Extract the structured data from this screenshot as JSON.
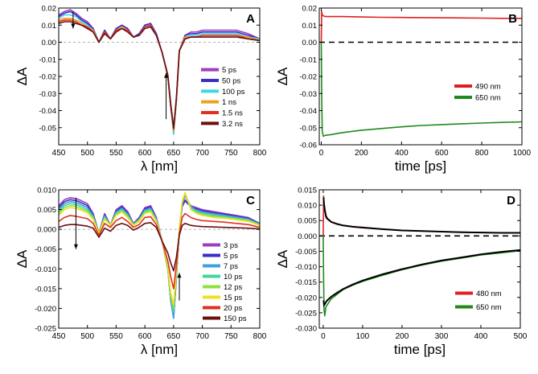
{
  "chart_data": [
    {
      "panel": "A",
      "type": "line",
      "xlabel": "λ [nm]",
      "ylabel": "ΔA",
      "xlim": [
        450,
        800
      ],
      "ylim": [
        -0.06,
        0.02
      ],
      "xticks": [
        450,
        500,
        550,
        600,
        650,
        700,
        750,
        800
      ],
      "yticks": [
        0.02,
        0.01,
        0.0,
        -0.01,
        -0.02,
        -0.03,
        -0.04,
        -0.05
      ],
      "legend_position": "bottom-right",
      "zero_line": true,
      "arrows": [
        {
          "x": 475,
          "from": 0.018,
          "to": 0.008
        },
        {
          "x": 637,
          "from": -0.045,
          "to": -0.018
        }
      ],
      "x": [
        450,
        460,
        470,
        480,
        490,
        500,
        510,
        520,
        530,
        540,
        550,
        560,
        570,
        580,
        590,
        600,
        610,
        620,
        630,
        640,
        645,
        650,
        655,
        660,
        670,
        680,
        690,
        700,
        720,
        740,
        760,
        780,
        800
      ],
      "series": [
        {
          "name": "5 ps",
          "color": "#9b3fc0",
          "values": [
            0.016,
            0.018,
            0.019,
            0.017,
            0.014,
            0.012,
            0.008,
            0.0,
            0.007,
            0.002,
            0.008,
            0.01,
            0.008,
            0.003,
            0.005,
            0.01,
            0.011,
            0.005,
            -0.006,
            -0.02,
            -0.038,
            -0.052,
            -0.034,
            -0.005,
            0.004,
            0.006,
            0.006,
            0.007,
            0.007,
            0.007,
            0.007,
            0.005,
            0.002
          ]
        },
        {
          "name": "50 ps",
          "color": "#3a2ec8",
          "values": [
            0.015,
            0.017,
            0.018,
            0.016,
            0.013,
            0.011,
            0.008,
            0.0,
            0.007,
            0.002,
            0.008,
            0.01,
            0.008,
            0.003,
            0.005,
            0.01,
            0.011,
            0.005,
            -0.006,
            -0.02,
            -0.038,
            -0.053,
            -0.034,
            -0.005,
            0.004,
            0.005,
            0.005,
            0.006,
            0.006,
            0.006,
            0.006,
            0.004,
            0.002
          ]
        },
        {
          "name": "100 ps",
          "color": "#3fd6e0",
          "values": [
            0.014,
            0.016,
            0.016,
            0.015,
            0.012,
            0.01,
            0.007,
            0.0,
            0.006,
            0.002,
            0.007,
            0.009,
            0.007,
            0.003,
            0.004,
            0.009,
            0.01,
            0.004,
            -0.006,
            -0.02,
            -0.038,
            -0.054,
            -0.034,
            -0.005,
            0.003,
            0.004,
            0.004,
            0.005,
            0.005,
            0.005,
            0.005,
            0.003,
            0.002
          ]
        },
        {
          "name": "1 ns",
          "color": "#f0a020",
          "values": [
            0.013,
            0.014,
            0.014,
            0.013,
            0.011,
            0.009,
            0.007,
            0.0,
            0.006,
            0.002,
            0.007,
            0.009,
            0.007,
            0.003,
            0.004,
            0.009,
            0.01,
            0.004,
            -0.006,
            -0.02,
            -0.037,
            -0.052,
            -0.033,
            -0.005,
            0.003,
            0.003,
            0.003,
            0.004,
            0.004,
            0.004,
            0.004,
            0.003,
            0.001
          ]
        },
        {
          "name": "1.5 ns",
          "color": "#e03020",
          "values": [
            0.012,
            0.013,
            0.013,
            0.012,
            0.01,
            0.009,
            0.006,
            0.0,
            0.006,
            0.002,
            0.007,
            0.008,
            0.007,
            0.003,
            0.004,
            0.009,
            0.01,
            0.004,
            -0.006,
            -0.02,
            -0.037,
            -0.051,
            -0.033,
            -0.005,
            0.002,
            0.003,
            0.003,
            0.004,
            0.004,
            0.004,
            0.004,
            0.002,
            0.001
          ]
        },
        {
          "name": "3.2 ns",
          "color": "#6a1010",
          "values": [
            0.011,
            0.012,
            0.012,
            0.011,
            0.01,
            0.008,
            0.006,
            0.0,
            0.005,
            0.002,
            0.006,
            0.008,
            0.006,
            0.003,
            0.004,
            0.008,
            0.009,
            0.004,
            -0.006,
            -0.019,
            -0.036,
            -0.05,
            -0.032,
            -0.005,
            0.002,
            0.003,
            0.003,
            0.003,
            0.003,
            0.003,
            0.003,
            0.002,
            0.001
          ]
        }
      ]
    },
    {
      "panel": "B",
      "type": "line",
      "xlabel": "time [ps]",
      "ylabel": "ΔA",
      "xlim": [
        -10,
        1000
      ],
      "ylim": [
        -0.06,
        0.02
      ],
      "xticks": [
        0,
        200,
        400,
        600,
        800,
        1000
      ],
      "yticks": [
        0.02,
        0.01,
        0.0,
        -0.01,
        -0.02,
        -0.03,
        -0.04,
        -0.05,
        -0.06
      ],
      "legend_position": "bottom-right",
      "zero_line": true,
      "series": [
        {
          "name": "490 nm",
          "color": "#e02020",
          "x": [
            0,
            2,
            5,
            10,
            20,
            50,
            100,
            200,
            300,
            400,
            500,
            600,
            700,
            800,
            900,
            1000
          ],
          "values": [
            0.0,
            0.018,
            0.016,
            0.0155,
            0.015,
            0.015,
            0.015,
            0.0148,
            0.0146,
            0.0145,
            0.0144,
            0.0143,
            0.0142,
            0.0141,
            0.014,
            0.014
          ]
        },
        {
          "name": "650 nm",
          "color": "#1e8a1e",
          "x": [
            0,
            2,
            5,
            10,
            20,
            50,
            100,
            200,
            300,
            400,
            500,
            600,
            700,
            800,
            900,
            1000
          ],
          "values": [
            0.0,
            -0.03,
            -0.052,
            -0.055,
            -0.0545,
            -0.054,
            -0.053,
            -0.0515,
            -0.0505,
            -0.0495,
            -0.0487,
            -0.0482,
            -0.0477,
            -0.0473,
            -0.0469,
            -0.0466
          ]
        }
      ]
    },
    {
      "panel": "C",
      "type": "line",
      "xlabel": "λ [nm]",
      "ylabel": "ΔA",
      "xlim": [
        450,
        800
      ],
      "ylim": [
        -0.025,
        0.01
      ],
      "xticks": [
        450,
        500,
        550,
        600,
        650,
        700,
        750,
        800
      ],
      "yticks": [
        0.01,
        0.005,
        0.0,
        -0.005,
        -0.01,
        -0.015,
        -0.02,
        -0.025
      ],
      "legend_position": "bottom-right",
      "zero_line": true,
      "arrows": [
        {
          "x": 480,
          "from": 0.008,
          "to": -0.005
        },
        {
          "x": 660,
          "from": -0.018,
          "to": -0.011
        }
      ],
      "x": [
        450,
        460,
        470,
        480,
        490,
        500,
        510,
        520,
        530,
        540,
        550,
        560,
        570,
        580,
        590,
        600,
        610,
        620,
        630,
        640,
        645,
        650,
        655,
        660,
        665,
        670,
        680,
        690,
        700,
        720,
        740,
        760,
        780,
        800
      ],
      "series": [
        {
          "name": "3 ps",
          "color": "#9b3fc0",
          "values": [
            0.006,
            0.0075,
            0.008,
            0.0078,
            0.0072,
            0.0065,
            0.004,
            -0.001,
            0.004,
            0.001,
            0.005,
            0.006,
            0.0045,
            0.0015,
            0.003,
            0.0055,
            0.006,
            0.003,
            -0.003,
            -0.01,
            -0.018,
            -0.0225,
            -0.012,
            0.0,
            0.006,
            0.0075,
            0.006,
            0.0055,
            0.005,
            0.0045,
            0.004,
            0.0035,
            0.003,
            0.0015
          ]
        },
        {
          "name": "5 ps",
          "color": "#3a2ec8",
          "values": [
            0.0055,
            0.007,
            0.0075,
            0.0073,
            0.0067,
            0.006,
            0.0037,
            -0.001,
            0.0037,
            0.001,
            0.0047,
            0.0057,
            0.0042,
            0.0014,
            0.0028,
            0.0052,
            0.0057,
            0.0028,
            -0.003,
            -0.01,
            -0.018,
            -0.022,
            -0.012,
            0.0,
            0.0058,
            0.0072,
            0.0057,
            0.0052,
            0.0047,
            0.0042,
            0.0038,
            0.0033,
            0.0028,
            0.0014
          ]
        },
        {
          "name": "7 ps",
          "color": "#3fa0e0",
          "values": [
            0.005,
            0.0065,
            0.007,
            0.0068,
            0.0062,
            0.0055,
            0.0034,
            -0.001,
            0.0034,
            0.001,
            0.0044,
            0.0053,
            0.0039,
            0.0013,
            0.0026,
            0.0049,
            0.0053,
            0.0026,
            -0.003,
            -0.01,
            -0.018,
            -0.0225,
            -0.012,
            0.0,
            0.0065,
            0.0085,
            0.0058,
            0.0048,
            0.0044,
            0.0039,
            0.0035,
            0.0031,
            0.0026,
            0.0013
          ]
        },
        {
          "name": "10 ps",
          "color": "#3fd6a0",
          "values": [
            0.0045,
            0.006,
            0.0065,
            0.0063,
            0.0057,
            0.005,
            0.0031,
            -0.001,
            0.0031,
            0.001,
            0.0041,
            0.005,
            0.0036,
            0.0012,
            0.0024,
            0.0046,
            0.005,
            0.0024,
            -0.003,
            -0.01,
            -0.017,
            -0.021,
            -0.011,
            0.0,
            0.0068,
            0.009,
            0.0055,
            0.0045,
            0.0041,
            0.0036,
            0.0032,
            0.0028,
            0.0024,
            0.0012
          ]
        },
        {
          "name": "12 ps",
          "color": "#90e040",
          "values": [
            0.004,
            0.0055,
            0.006,
            0.0058,
            0.0052,
            0.0046,
            0.0028,
            -0.001,
            0.0028,
            0.001,
            0.0038,
            0.0047,
            0.0033,
            0.0011,
            0.0022,
            0.0043,
            0.0047,
            0.0022,
            -0.003,
            -0.01,
            -0.017,
            -0.02,
            -0.011,
            0.0,
            0.007,
            0.0092,
            0.0052,
            0.0042,
            0.0038,
            0.0033,
            0.003,
            0.0026,
            0.0022,
            0.0011
          ]
        },
        {
          "name": "15 ps",
          "color": "#f0e020",
          "values": [
            0.0035,
            0.005,
            0.0055,
            0.0053,
            0.0048,
            0.0042,
            0.0025,
            -0.001,
            0.0025,
            0.001,
            0.0035,
            0.0044,
            0.003,
            0.001,
            0.002,
            0.004,
            0.0044,
            0.002,
            -0.003,
            -0.009,
            -0.016,
            -0.019,
            -0.01,
            0.0,
            0.0072,
            0.0093,
            0.005,
            0.004,
            0.0035,
            0.003,
            0.0028,
            0.0024,
            0.002,
            0.001
          ]
        },
        {
          "name": "20 ps",
          "color": "#e03020",
          "values": [
            0.002,
            0.003,
            0.0035,
            0.0033,
            0.003,
            0.0027,
            0.0015,
            -0.0015,
            0.0015,
            0.0005,
            0.0022,
            0.003,
            0.002,
            0.0005,
            0.0012,
            0.003,
            0.0032,
            0.0012,
            -0.003,
            -0.008,
            -0.012,
            -0.015,
            -0.009,
            -0.001,
            0.003,
            0.004,
            0.003,
            0.0025,
            0.0022,
            0.002,
            0.0018,
            0.0015,
            0.0012,
            0.0005
          ]
        },
        {
          "name": "150 ps",
          "color": "#6a1010",
          "values": [
            0.0005,
            0.001,
            0.0012,
            0.0012,
            0.001,
            0.0008,
            0.0003,
            -0.002,
            0.0003,
            -0.0005,
            0.001,
            0.0015,
            0.001,
            -0.0002,
            0.0005,
            0.0015,
            0.0017,
            0.0005,
            -0.003,
            -0.006,
            -0.0085,
            -0.0105,
            -0.007,
            -0.0015,
            0.001,
            0.0015,
            0.001,
            0.0008,
            0.0007,
            0.0006,
            0.0005,
            0.0004,
            0.0003,
            0.0001
          ]
        }
      ]
    },
    {
      "panel": "D",
      "type": "line",
      "xlabel": "time [ps]",
      "ylabel": "ΔA",
      "xlim": [
        -10,
        500
      ],
      "ylim": [
        -0.03,
        0.015
      ],
      "xticks": [
        0,
        100,
        200,
        300,
        400,
        500
      ],
      "yticks": [
        0.015,
        0.01,
        0.005,
        0.0,
        -0.005,
        -0.01,
        -0.015,
        -0.02,
        -0.025,
        -0.03
      ],
      "legend_position": "bottom-right",
      "zero_line": true,
      "fit_color": "#000000",
      "series": [
        {
          "name": "480 nm",
          "color": "#e02020",
          "x": [
            0,
            1,
            2,
            4,
            7,
            10,
            20,
            35,
            50,
            75,
            100,
            150,
            200,
            250,
            300,
            350,
            400,
            450,
            500
          ],
          "values": [
            0.0,
            0.013,
            0.01,
            0.008,
            0.006,
            0.0055,
            0.0045,
            0.0038,
            0.0034,
            0.003,
            0.0028,
            0.0022,
            0.0018,
            0.0016,
            0.0014,
            0.0012,
            0.0011,
            0.001,
            0.001
          ],
          "fit": [
            null,
            0.0125,
            0.0105,
            0.0085,
            0.0065,
            0.0057,
            0.0046,
            0.0039,
            0.0034,
            0.003,
            0.0027,
            0.0022,
            0.0018,
            0.0016,
            0.0014,
            0.0012,
            0.0011,
            0.001,
            0.001
          ]
        },
        {
          "name": "650 nm",
          "color": "#1e8a1e",
          "x": [
            0,
            1,
            2,
            4,
            7,
            10,
            20,
            35,
            50,
            75,
            100,
            150,
            200,
            250,
            300,
            350,
            400,
            450,
            500
          ],
          "values": [
            0.0,
            -0.014,
            -0.024,
            -0.026,
            -0.023,
            -0.0225,
            -0.0205,
            -0.019,
            -0.0175,
            -0.016,
            -0.0148,
            -0.0128,
            -0.011,
            -0.0095,
            -0.0082,
            -0.0072,
            -0.0062,
            -0.0055,
            -0.0048
          ],
          "fit": [
            null,
            -0.021,
            -0.0225,
            -0.0222,
            -0.0215,
            -0.021,
            -0.0198,
            -0.0185,
            -0.0173,
            -0.0158,
            -0.0145,
            -0.0125,
            -0.0108,
            -0.0093,
            -0.008,
            -0.007,
            -0.006,
            -0.0052,
            -0.0046
          ]
        }
      ]
    }
  ]
}
